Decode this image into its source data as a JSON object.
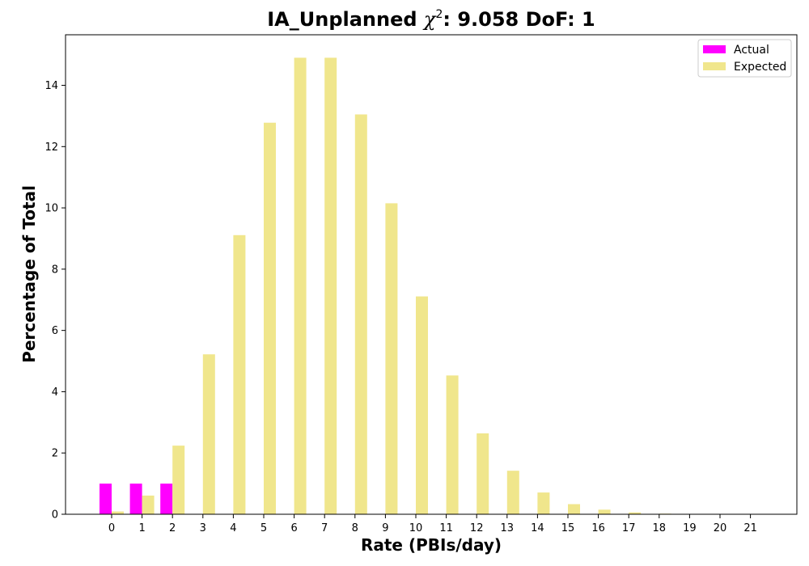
{
  "chart_data": {
    "type": "bar",
    "title_prefix": "IA_Unplanned ",
    "title_chi": "χ",
    "title_sup": "2",
    "title_suffix": ": 9.058 DoF: 1",
    "xlabel": "Rate (PBIs/day)",
    "ylabel": "Percentage of Total",
    "categories": [
      "0",
      "1",
      "2",
      "3",
      "4",
      "5",
      "6",
      "7",
      "8",
      "9",
      "10",
      "11",
      "12",
      "13",
      "14",
      "15",
      "16",
      "17",
      "18",
      "19",
      "20",
      "21"
    ],
    "yticks": [
      0,
      2,
      4,
      6,
      8,
      10,
      12,
      14
    ],
    "ylim": [
      0,
      15.65
    ],
    "grid": false,
    "legend_position": "top-right",
    "series": [
      {
        "name": "Actual",
        "color": "#ff00ff",
        "values": [
          1.0,
          1.0,
          1.0,
          0,
          0,
          0,
          0,
          0,
          0,
          0,
          0,
          0,
          0,
          0,
          0,
          0,
          0,
          0,
          0,
          0,
          0,
          0
        ]
      },
      {
        "name": "Expected",
        "color": "#f0e68c",
        "values": [
          0.09,
          0.61,
          2.24,
          5.22,
          9.11,
          12.78,
          14.9,
          14.9,
          13.05,
          10.15,
          7.11,
          4.53,
          2.64,
          1.42,
          0.71,
          0.33,
          0.15,
          0.06,
          0.02,
          0.01,
          0.0,
          0.0
        ]
      }
    ]
  }
}
